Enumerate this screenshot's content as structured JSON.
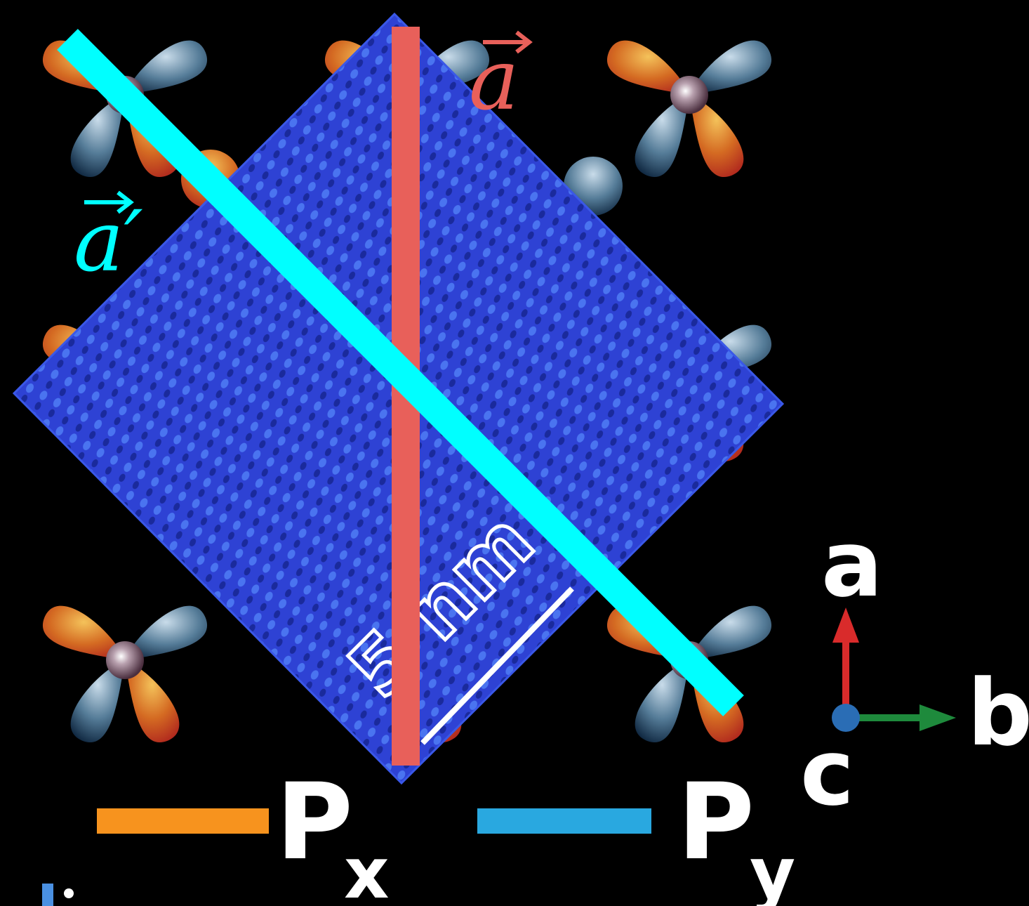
{
  "figure": {
    "vector_a_label": "a",
    "vector_a_prime_label": "a′",
    "vector_a_color": "#E8605A",
    "vector_a_prime_color": "#00FFFF",
    "scale_bar_label": "5 nm",
    "axes": {
      "a_label": "a",
      "b_label": "b",
      "c_label": "c",
      "a_color": "#D92B2B",
      "b_color": "#1E8A3C",
      "c_color": "#2A6DB5"
    },
    "legend": [
      {
        "label": "P",
        "subscript": "x",
        "color": "#F7931E"
      },
      {
        "label": "P",
        "subscript": "y",
        "color": "#29A8E0"
      }
    ],
    "orbital_colors": {
      "px_lobe": "#E08A2A",
      "py_lobe": "#2E5570",
      "atom": "#6A4A5A",
      "stm_image": "#2E46D8"
    }
  }
}
